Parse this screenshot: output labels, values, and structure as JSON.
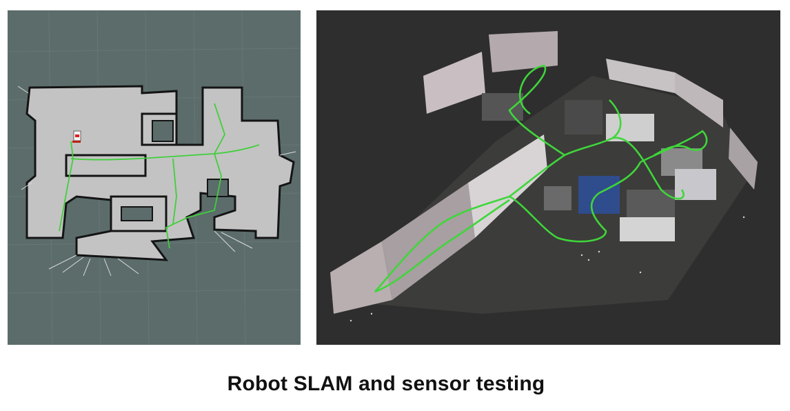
{
  "caption": "Robot SLAM and sensor testing",
  "colors": {
    "map_background": "#5b6c6b",
    "map_free_space": "#c3c3c3",
    "map_walls": "#141414",
    "trajectory": "#3fcf3a",
    "pointcloud_background": "#2e2e2e"
  },
  "images": [
    {
      "name": "occupancy-grid-map",
      "depicts": "2D SLAM occupancy grid map with green robot trajectory"
    },
    {
      "name": "3d-point-cloud",
      "depicts": "3D point cloud of office interior with green robot trajectory"
    }
  ]
}
